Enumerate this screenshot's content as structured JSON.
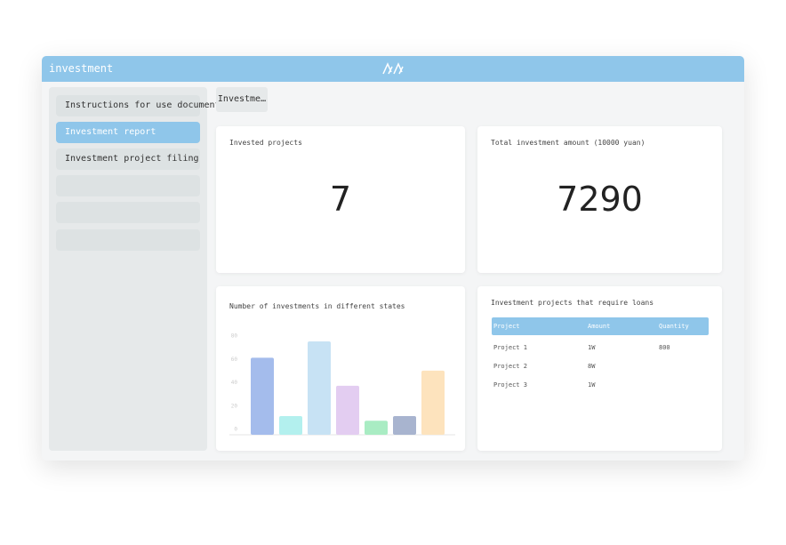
{
  "header": {
    "title": "investment"
  },
  "sidebar": {
    "items": [
      "Instructions for use document",
      "Investment report",
      "Investment project filing"
    ]
  },
  "tab": {
    "label": "Investme…"
  },
  "cards": [
    {
      "title": "Invested projects",
      "value": "7"
    },
    {
      "title": "Total investment amount (10000 yuan)",
      "value": "7290"
    }
  ],
  "chart": {
    "type": "bar",
    "title": "Number of investments in different states",
    "values": [
      66,
      16,
      80,
      42,
      12,
      16,
      55
    ],
    "colors": [
      "#a4bcec",
      "#b3f0ee",
      "#c7e2f4",
      "#e3cdf1",
      "#a9ecc3",
      "#a8b4cf",
      "#fde3bd"
    ],
    "ylim": [
      0,
      80
    ],
    "yticks": [
      0,
      20,
      40,
      60,
      80
    ]
  },
  "table": {
    "title": "Investment projects that require loans",
    "columns": [
      "Project",
      "Amount",
      "Quantity"
    ],
    "rows": [
      [
        "Project 1",
        "1W",
        "800"
      ],
      [
        "Project 2",
        "8W",
        null
      ],
      [
        "Project 3",
        "1W",
        null
      ]
    ]
  }
}
